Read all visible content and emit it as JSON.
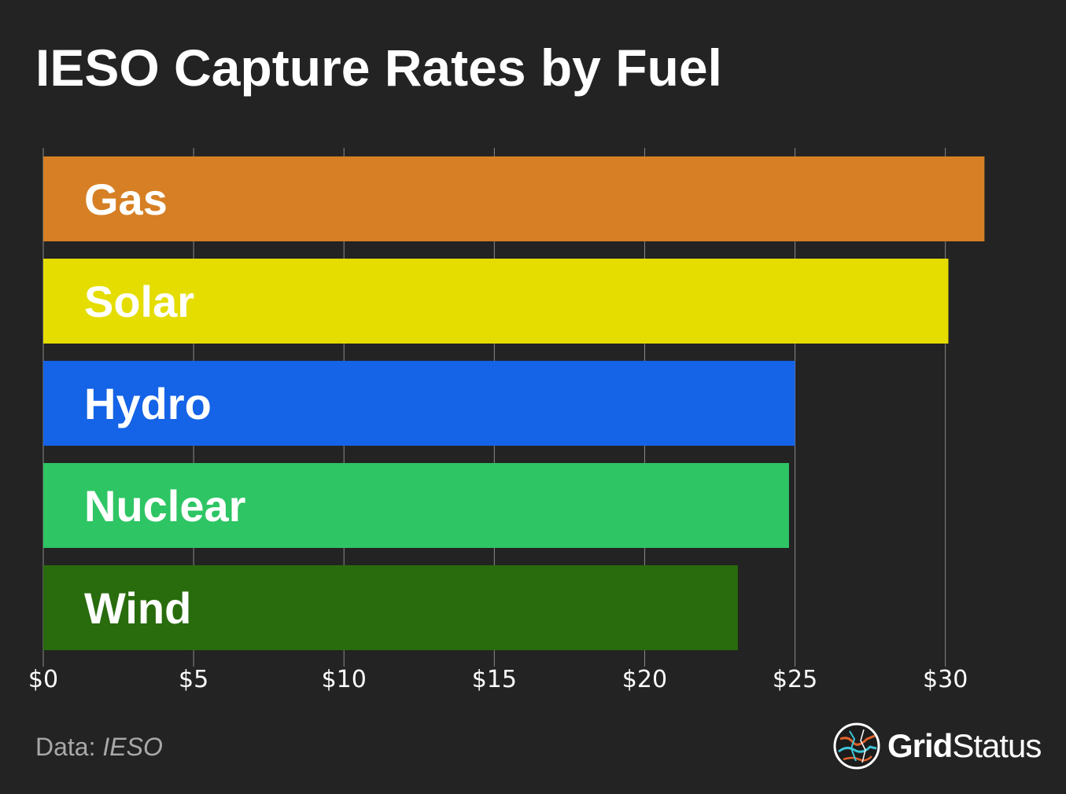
{
  "chart_data": {
    "type": "bar",
    "orientation": "horizontal",
    "title": "IESO Capture Rates by Fuel",
    "categories": [
      "Gas",
      "Solar",
      "Hydro",
      "Nuclear",
      "Wind"
    ],
    "values": [
      31.3,
      30.1,
      25.0,
      24.8,
      23.1
    ],
    "colors": [
      "#d67f24",
      "#e5dd00",
      "#1563e6",
      "#2ec564",
      "#286c0d"
    ],
    "xlim": [
      0,
      31.5
    ],
    "xticks": [
      0,
      5,
      10,
      15,
      20,
      25,
      30
    ],
    "xtick_labels": [
      "$0",
      "$5",
      "$10",
      "$15",
      "$20",
      "$25",
      "$30"
    ],
    "xlabel": "",
    "ylabel": "",
    "grid": "vertical"
  },
  "footer": {
    "source_prefix": "Data: ",
    "source_name": "IESO"
  },
  "brand": {
    "name_bold": "Grid",
    "name_regular": "Status"
  }
}
